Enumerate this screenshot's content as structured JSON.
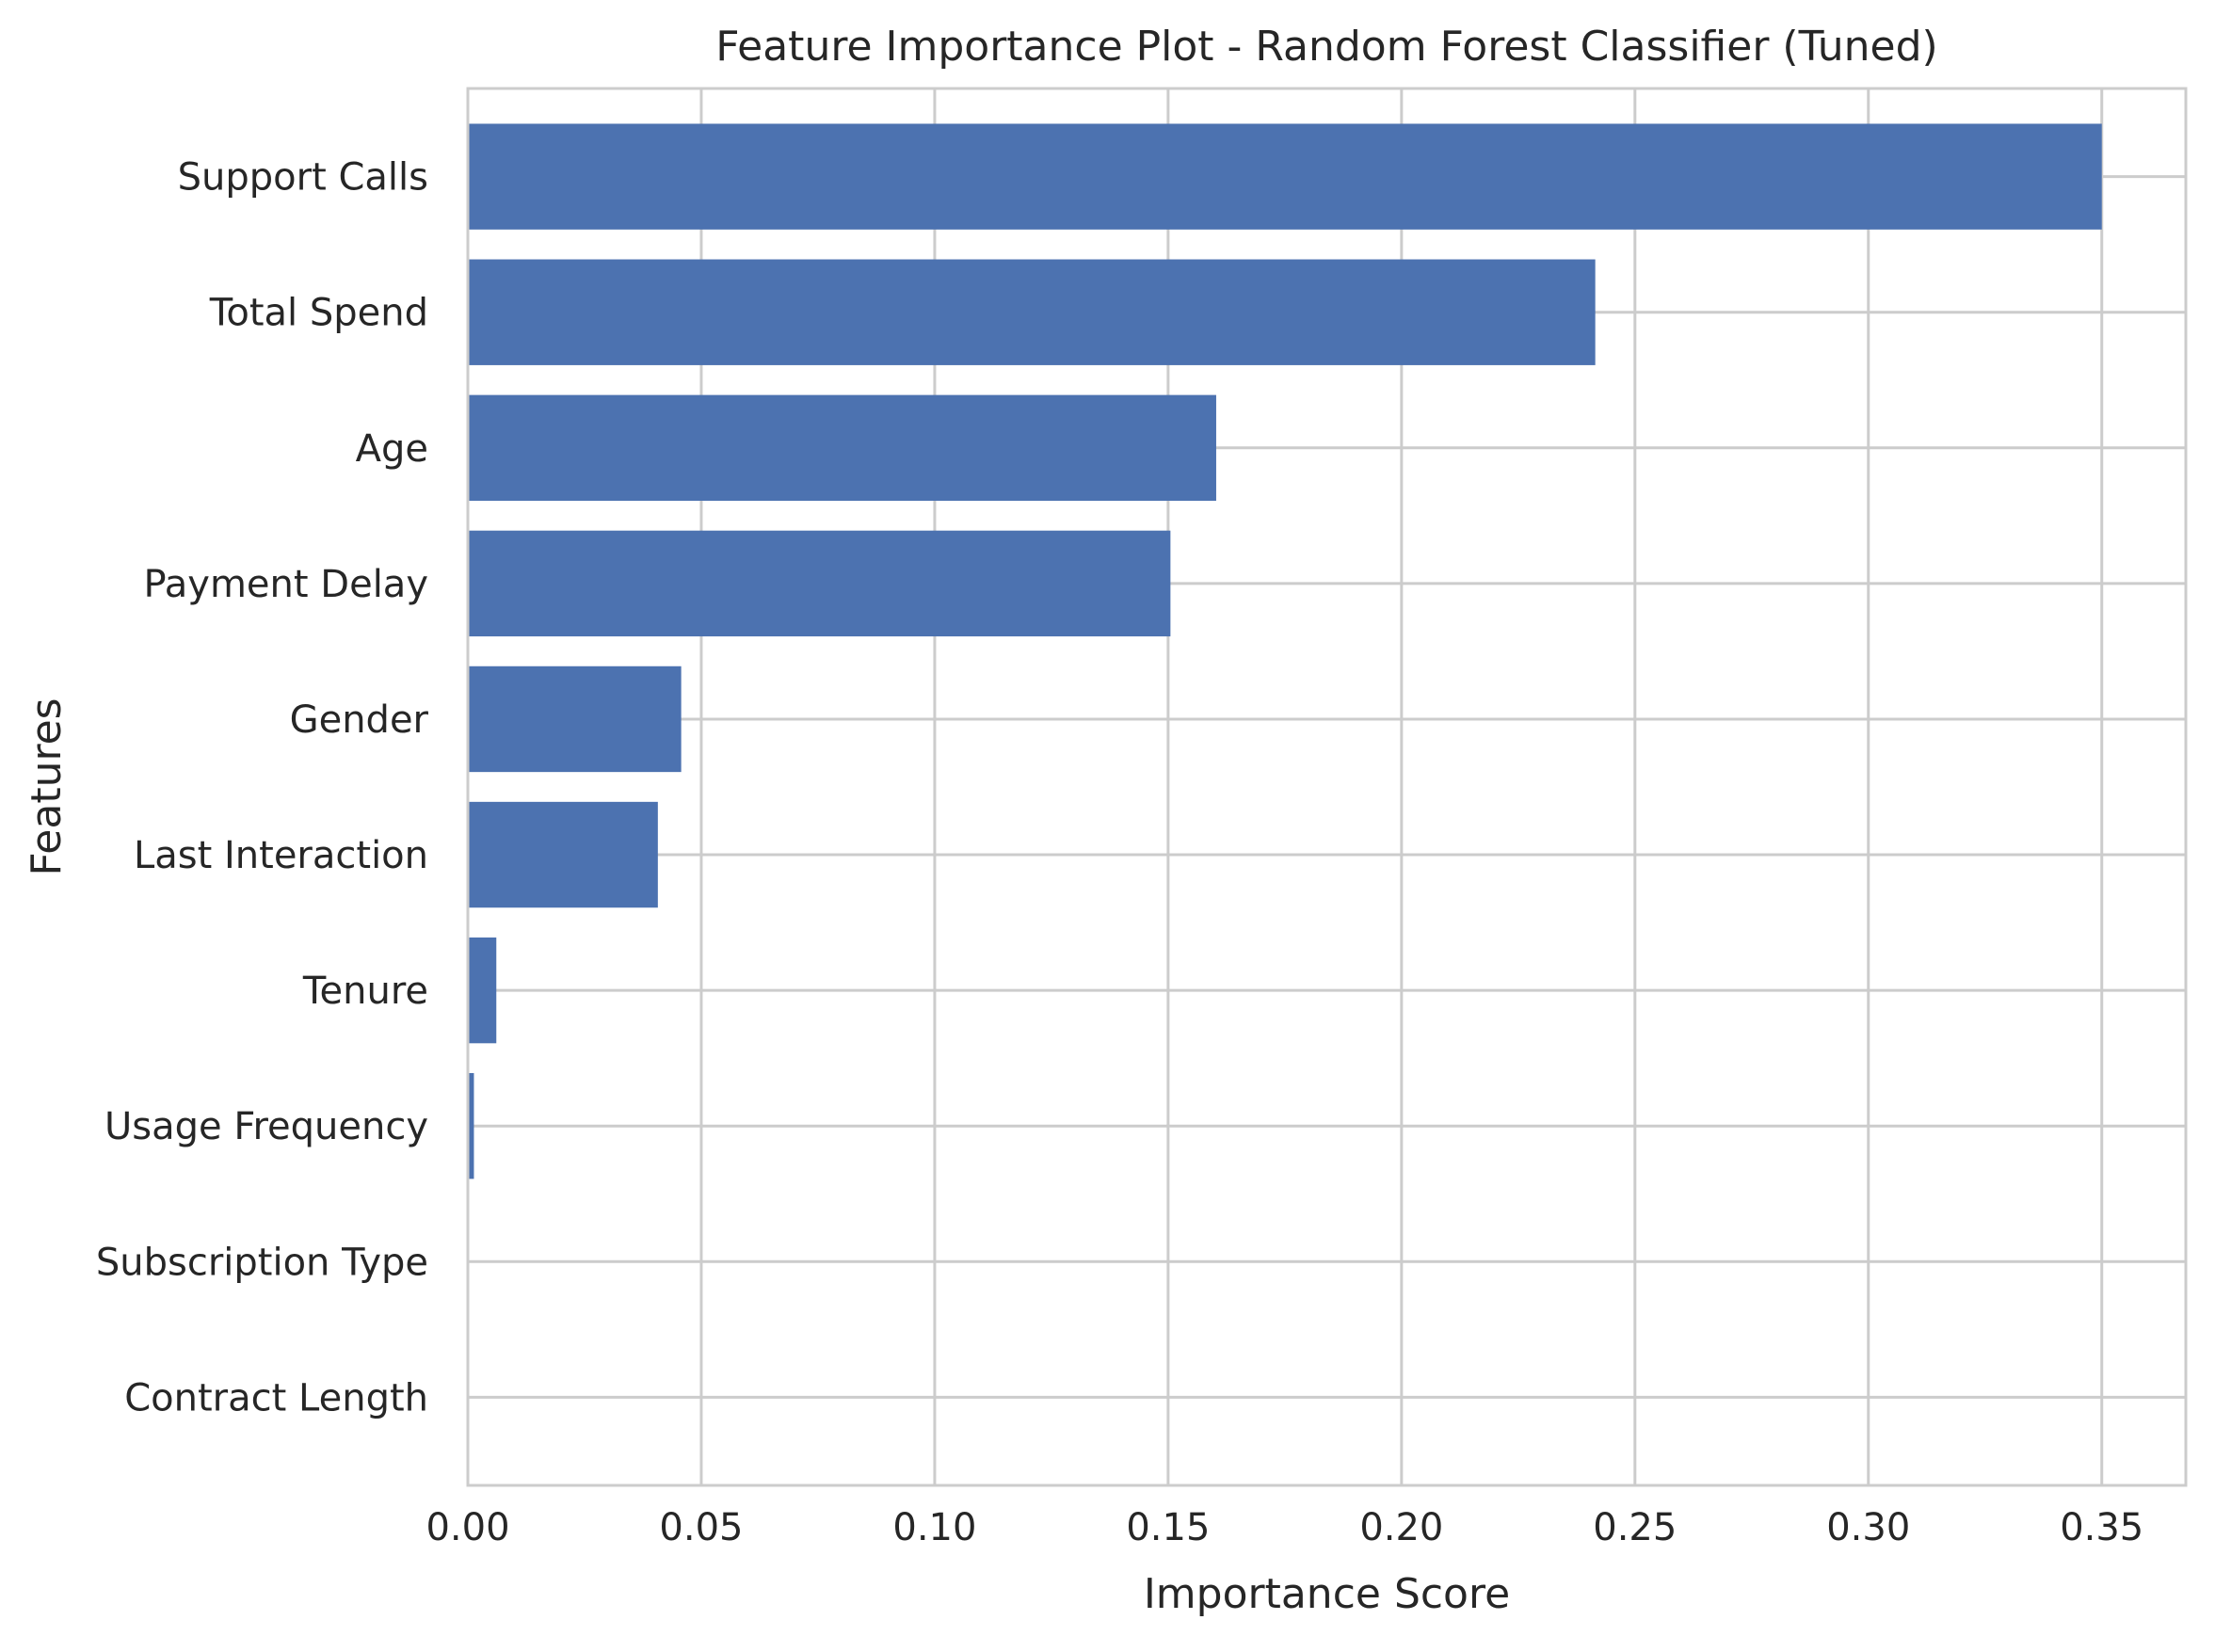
{
  "chart_data": {
    "type": "bar",
    "orientation": "horizontal",
    "title": "Feature Importance Plot - Random Forest Classifier (Tuned)",
    "xlabel": "Importance Score",
    "ylabel": "Features",
    "categories": [
      "Support Calls",
      "Total Spend",
      "Age",
      "Payment Delay",
      "Gender",
      "Last Interaction",
      "Tenure",
      "Usage Frequency",
      "Subscription Type",
      "Contract Length"
    ],
    "values": [
      0.35,
      0.2415,
      0.1603,
      0.1505,
      0.0457,
      0.0407,
      0.0061,
      0.0013,
      0.0,
      0.0
    ],
    "xlim": [
      0,
      0.368
    ],
    "xticks": [
      0.0,
      0.05,
      0.1,
      0.15,
      0.2,
      0.25,
      0.3,
      0.35
    ],
    "xtick_labels": [
      "0.00",
      "0.05",
      "0.10",
      "0.15",
      "0.20",
      "0.25",
      "0.30",
      "0.35"
    ],
    "grid": true,
    "colors": {
      "bar": "#4c72b0",
      "grid": "#cccccc",
      "spine": "#cccccc",
      "text": "#262626"
    }
  }
}
